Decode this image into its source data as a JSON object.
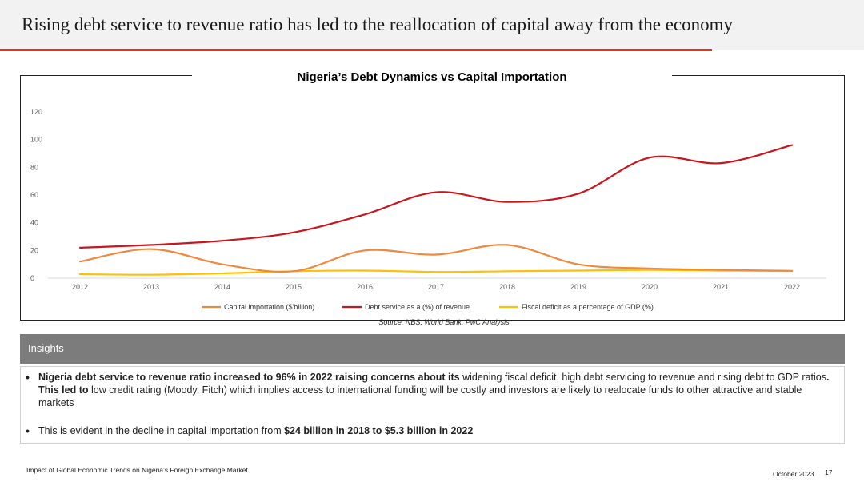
{
  "slide": {
    "title": "Rising debt service to revenue ratio has led to the reallocation of capital away from the economy"
  },
  "source_note": "Source: NBS, World Bank, PwC Analysis",
  "insights": {
    "header": "Insights",
    "bullet1": {
      "bold_part": "Nigeria debt service to revenue ratio increased to 96% in 2022 raising concerns about its",
      "text_a": " widening fiscal deficit, high debt servicing to revenue and rising debt to GDP ratios",
      "bold_b": ".  This led to",
      "text_c": " low credit rating (Moody, Fitch) which implies access to international funding will be costly and investors are likely to realocate funds to other attractive and stable markets"
    },
    "bullet2": {
      "text_a": "This is evident in the decline in capital importation from ",
      "bold_b": "$24 billion in 2018 to $5.3 billion in 2022"
    }
  },
  "footer": {
    "left": "Impact of Global Economic Trends on Nigeria’s Foreign Exchange Market",
    "date": "October 2023",
    "page": "17"
  },
  "colors": {
    "capital": "#f0883e",
    "debt": "#c8161d",
    "fiscal": "#ffc000",
    "accent": "#e0301e"
  },
  "chart_data": {
    "type": "line",
    "title": "Nigeria’s Debt Dynamics vs Capital Importation",
    "x": [
      "2012",
      "2013",
      "2014",
      "2015",
      "2016",
      "2017",
      "2018",
      "2019",
      "2020",
      "2021",
      "2022"
    ],
    "yticks": [
      "0",
      "20",
      "40",
      "60",
      "80",
      "100",
      "120"
    ],
    "ylim": [
      0,
      120
    ],
    "legend_position": "bottom",
    "series": [
      {
        "name": "Capital importation ($'billion)",
        "color_key": "capital",
        "values": [
          12,
          21,
          10,
          5,
          20,
          17,
          24,
          10,
          7,
          6,
          5.3
        ]
      },
      {
        "name": "Debt service as a (%) of revenue",
        "color_key": "debt",
        "values": [
          22,
          24,
          27,
          33,
          46,
          62,
          55,
          61,
          87,
          83,
          96
        ]
      },
      {
        "name": "Fiscal deficit as a percentage of GDP (%)",
        "color_key": "fiscal",
        "values": [
          2.9,
          2.5,
          3.5,
          5,
          5.5,
          4.5,
          5,
          5.5,
          6,
          5.5,
          5.2
        ]
      }
    ]
  }
}
